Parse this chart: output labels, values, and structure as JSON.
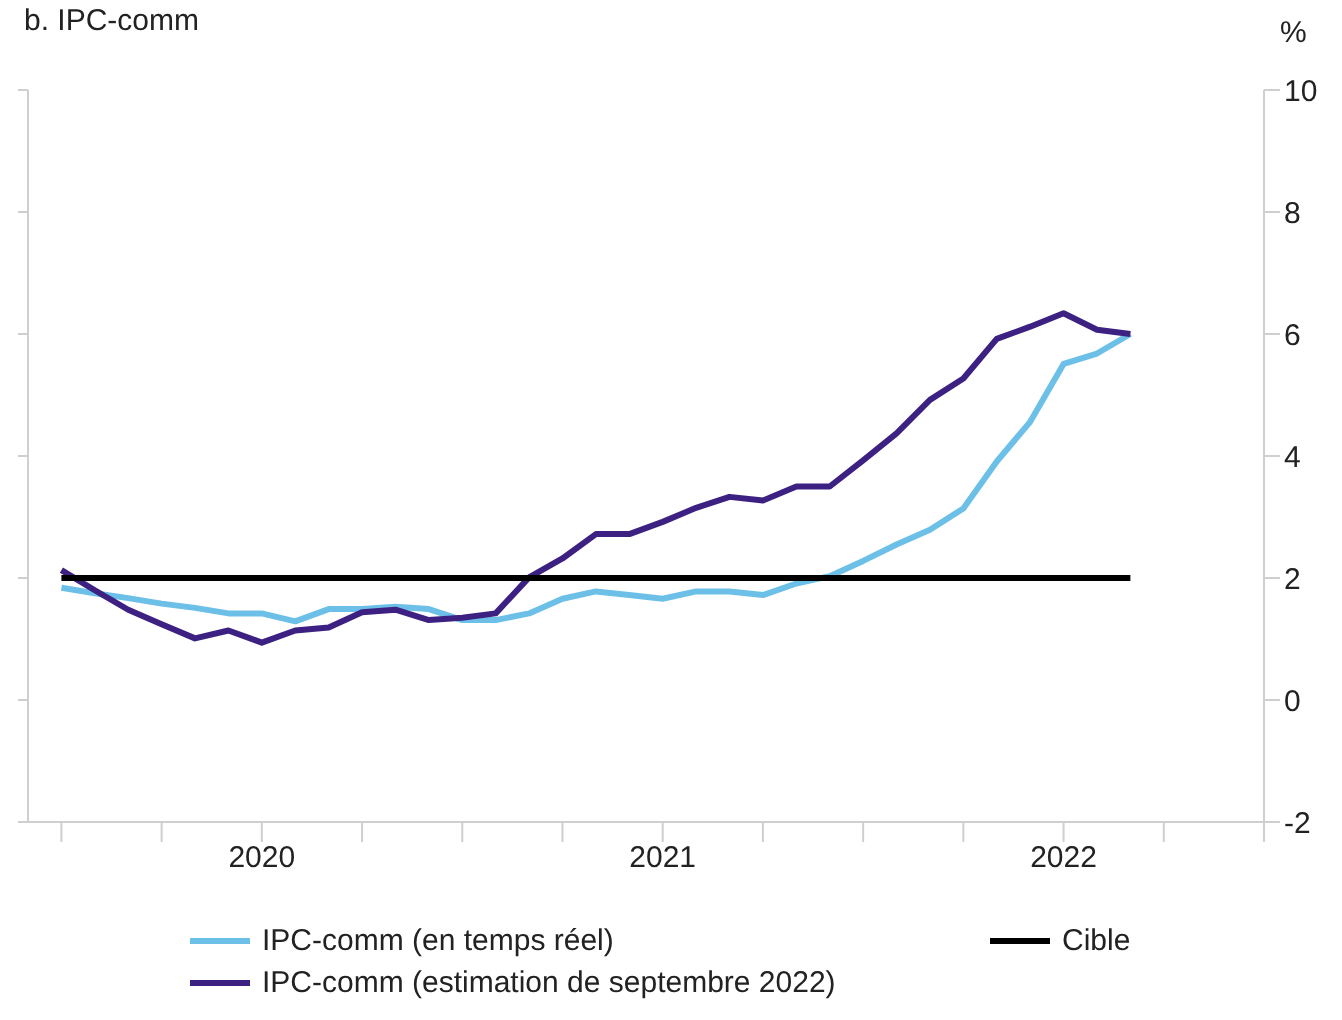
{
  "chart_data": {
    "type": "line",
    "title": "b. IPC-comm",
    "ylabel": "%",
    "x": [
      "2019-07",
      "2019-08",
      "2019-09",
      "2019-10",
      "2019-11",
      "2019-12",
      "2020-01",
      "2020-02",
      "2020-03",
      "2020-04",
      "2020-05",
      "2020-06",
      "2020-07",
      "2020-08",
      "2020-09",
      "2020-10",
      "2020-11",
      "2020-12",
      "2021-01",
      "2021-02",
      "2021-03",
      "2021-04",
      "2021-05",
      "2021-06",
      "2021-07",
      "2021-08",
      "2021-09",
      "2021-10",
      "2021-11",
      "2021-12",
      "2022-01",
      "2022-02",
      "2022-03"
    ],
    "series": [
      {
        "name": "IPC-comm (en temps réel)",
        "color": "#6cc0e8",
        "values": [
          1.84,
          1.75,
          1.67,
          1.58,
          1.51,
          1.42,
          1.42,
          1.29,
          1.49,
          1.49,
          1.53,
          1.49,
          1.31,
          1.31,
          1.42,
          1.66,
          1.78,
          1.72,
          1.66,
          1.78,
          1.78,
          1.72,
          1.91,
          2.03,
          2.28,
          2.55,
          2.79,
          3.14,
          3.91,
          4.56,
          5.51,
          5.68,
          6.0
        ]
      },
      {
        "name": "IPC-comm (estimation de septembre 2022)",
        "color": "#3d2182",
        "values": [
          2.13,
          1.8,
          1.48,
          1.24,
          1.01,
          1.14,
          0.94,
          1.14,
          1.19,
          1.44,
          1.48,
          1.31,
          1.35,
          1.42,
          2.01,
          2.32,
          2.72,
          2.72,
          2.92,
          3.15,
          3.33,
          3.27,
          3.5,
          3.5,
          3.93,
          4.37,
          4.92,
          5.27,
          5.92,
          6.12,
          6.34,
          6.07,
          6.0
        ]
      },
      {
        "name": "Cible",
        "color": "#000000",
        "values": [
          2,
          2,
          2,
          2,
          2,
          2,
          2,
          2,
          2,
          2,
          2,
          2,
          2,
          2,
          2,
          2,
          2,
          2,
          2,
          2,
          2,
          2,
          2,
          2,
          2,
          2,
          2,
          2,
          2,
          2,
          2,
          2,
          2
        ]
      }
    ],
    "xlim": [
      "2019-06",
      "2022-07"
    ],
    "xticks": [
      {
        "value": "2019-07",
        "label": null
      },
      {
        "value": "2019-10",
        "label": null
      },
      {
        "value": "2020-01",
        "label": "2020"
      },
      {
        "value": "2020-04",
        "label": null
      },
      {
        "value": "2020-07",
        "label": null
      },
      {
        "value": "2020-10",
        "label": null
      },
      {
        "value": "2021-01",
        "label": "2021"
      },
      {
        "value": "2021-04",
        "label": null
      },
      {
        "value": "2021-07",
        "label": null
      },
      {
        "value": "2021-10",
        "label": null
      },
      {
        "value": "2022-01",
        "label": "2022"
      },
      {
        "value": "2022-04",
        "label": null
      },
      {
        "value": "2022-07",
        "label": null
      }
    ],
    "ylim": [
      -2,
      10
    ],
    "yticks": [
      -2,
      0,
      2,
      4,
      6,
      8,
      10
    ],
    "grid": false,
    "legend": "bottom",
    "marker": "none",
    "line_style": "solid"
  }
}
